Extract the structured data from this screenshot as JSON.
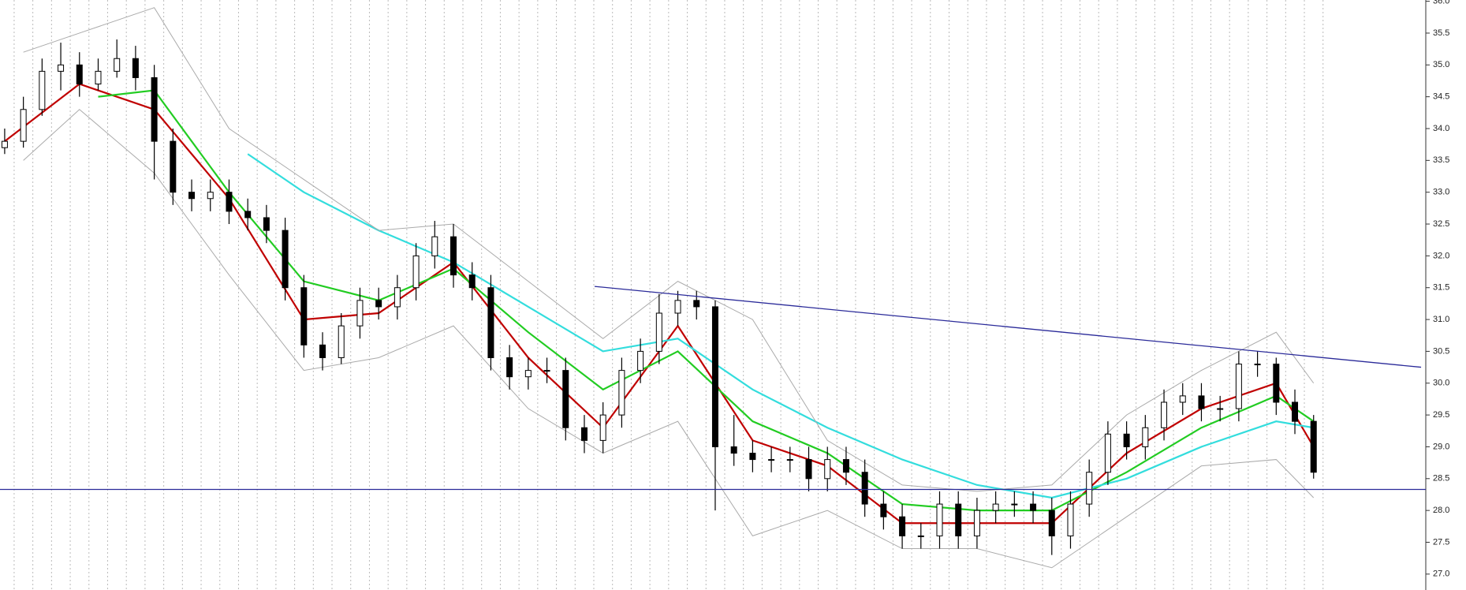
{
  "chart_data": {
    "type": "candlestick",
    "xlim": [
      -0.25,
      76
    ],
    "ylim": [
      26.75,
      36.02
    ],
    "yticks": [
      {
        "value": 27,
        "label": "27.0"
      },
      {
        "value": 27.5,
        "label": "27.5"
      },
      {
        "value": 28,
        "label": "28.0"
      },
      {
        "value": 28.5,
        "label": "28.5"
      },
      {
        "value": 29,
        "label": "29.0"
      },
      {
        "value": 29.5,
        "label": "29.5"
      },
      {
        "value": 30,
        "label": "30.0"
      },
      {
        "value": 30.5,
        "label": "30.5"
      },
      {
        "value": 31,
        "label": "31.0"
      },
      {
        "value": 31.5,
        "label": "31.5"
      },
      {
        "value": 32,
        "label": "32.0"
      },
      {
        "value": 32.5,
        "label": "32.5"
      },
      {
        "value": 33,
        "label": "33.0"
      },
      {
        "value": 33.5,
        "label": "33.5"
      },
      {
        "value": 34,
        "label": "34.0"
      },
      {
        "value": 34.5,
        "label": "34.5"
      },
      {
        "value": 35,
        "label": "35.0"
      },
      {
        "value": 35.5,
        "label": "35.5"
      },
      {
        "value": 36,
        "label": "36.0"
      }
    ],
    "grid": true,
    "candle_color": "#000000",
    "open": [
      33.7,
      33.8,
      34.3,
      34.9,
      35.0,
      34.7,
      34.9,
      35.1,
      34.8,
      33.8,
      33.0,
      32.9,
      33.0,
      32.7,
      32.6,
      32.4,
      31.5,
      30.6,
      30.4,
      30.9,
      31.3,
      31.2,
      31.5,
      32.0,
      32.3,
      31.7,
      31.5,
      30.4,
      30.1,
      30.2,
      30.2,
      29.3,
      29.1,
      29.5,
      30.2,
      30.5,
      31.1,
      31.3,
      31.2,
      29.0,
      28.9,
      28.8,
      28.8,
      28.8,
      28.5,
      28.8,
      28.6,
      28.1,
      27.9,
      27.6,
      27.6,
      28.1,
      27.6,
      28.0,
      28.1,
      28.1,
      28.0,
      27.6,
      28.1,
      28.6,
      29.2,
      29.0,
      29.3,
      29.7,
      29.8,
      29.6,
      29.6,
      30.3,
      30.3,
      29.7,
      29.4
    ],
    "high": [
      34.0,
      34.5,
      35.1,
      35.35,
      35.2,
      35.1,
      35.4,
      35.3,
      35.0,
      34.0,
      33.2,
      33.2,
      33.2,
      32.9,
      32.8,
      32.6,
      31.7,
      30.8,
      31.1,
      31.5,
      31.5,
      31.7,
      32.2,
      32.55,
      32.5,
      31.9,
      31.7,
      30.6,
      30.4,
      30.4,
      30.4,
      29.5,
      29.7,
      30.4,
      30.7,
      31.4,
      31.45,
      31.45,
      31.3,
      29.5,
      29.1,
      29.0,
      29.0,
      29.0,
      29.0,
      29.0,
      28.8,
      28.3,
      28.1,
      27.8,
      28.3,
      28.3,
      28.2,
      28.3,
      28.3,
      28.3,
      28.2,
      28.3,
      28.8,
      29.4,
      29.4,
      29.5,
      29.9,
      30.0,
      30.0,
      29.8,
      30.5,
      30.5,
      30.4,
      29.9,
      29.5
    ],
    "low": [
      33.6,
      33.7,
      34.2,
      34.6,
      34.5,
      34.6,
      34.8,
      34.6,
      33.2,
      32.8,
      32.7,
      32.7,
      32.5,
      32.4,
      32.2,
      31.3,
      30.4,
      30.2,
      30.3,
      30.7,
      31.0,
      31.0,
      31.3,
      31.8,
      31.5,
      31.3,
      30.2,
      29.9,
      29.9,
      30.0,
      29.1,
      28.9,
      28.9,
      29.3,
      30.0,
      30.3,
      30.9,
      31.0,
      28.0,
      28.7,
      28.6,
      28.6,
      28.6,
      28.3,
      28.3,
      28.4,
      27.9,
      27.7,
      27.4,
      27.4,
      27.4,
      27.4,
      27.4,
      27.8,
      27.9,
      27.8,
      27.3,
      27.4,
      27.9,
      28.4,
      28.8,
      28.8,
      29.1,
      29.5,
      29.4,
      29.4,
      29.4,
      30.1,
      29.5,
      29.2,
      28.5
    ],
    "close": [
      33.8,
      34.3,
      34.9,
      35.0,
      34.7,
      34.9,
      35.1,
      34.8,
      33.8,
      33.0,
      32.9,
      33.0,
      32.7,
      32.6,
      32.4,
      31.5,
      30.6,
      30.4,
      30.9,
      31.3,
      31.2,
      31.5,
      32.0,
      32.3,
      31.7,
      31.5,
      30.4,
      30.1,
      30.2,
      30.2,
      29.3,
      29.1,
      29.5,
      30.2,
      30.5,
      31.1,
      31.3,
      31.2,
      29.0,
      28.9,
      28.8,
      28.8,
      28.8,
      28.5,
      28.8,
      28.6,
      28.1,
      27.9,
      27.6,
      27.6,
      28.1,
      27.6,
      28.0,
      28.1,
      28.1,
      28.0,
      27.6,
      28.1,
      28.6,
      29.2,
      29.0,
      29.3,
      29.7,
      29.8,
      29.6,
      29.6,
      30.3,
      30.3,
      29.7,
      29.4,
      28.6
    ],
    "series": [
      {
        "color": "#c00000",
        "x": [
          0,
          4,
          8,
          12,
          16,
          20,
          24,
          28,
          32,
          36,
          40,
          44,
          48,
          52,
          56,
          60,
          64,
          68,
          70
        ],
        "values": [
          33.8,
          34.7,
          34.3,
          32.9,
          31.0,
          31.1,
          31.9,
          30.4,
          29.3,
          30.9,
          29.1,
          28.7,
          27.8,
          27.8,
          27.8,
          28.9,
          29.6,
          30.0,
          29.0
        ]
      },
      {
        "color": "#22cc22",
        "x": [
          5,
          8,
          12,
          16,
          20,
          24,
          28,
          32,
          36,
          40,
          44,
          48,
          52,
          56,
          60,
          64,
          68,
          70
        ],
        "values": [
          34.5,
          34.6,
          33.0,
          31.6,
          31.3,
          31.8,
          30.8,
          29.9,
          30.5,
          29.4,
          28.9,
          28.1,
          28.0,
          28.0,
          28.6,
          29.3,
          29.8,
          29.4
        ]
      },
      {
        "color": "#33dddd",
        "x": [
          13,
          16,
          20,
          24,
          28,
          32,
          36,
          40,
          44,
          48,
          52,
          56,
          60,
          64,
          68,
          70
        ],
        "values": [
          33.6,
          33.0,
          32.4,
          31.9,
          31.2,
          30.5,
          30.7,
          29.9,
          29.3,
          28.8,
          28.4,
          28.2,
          28.5,
          29.0,
          29.4,
          29.3
        ]
      },
      {
        "color": "#aaaaaa",
        "x": [
          1,
          4,
          8,
          12,
          16,
          20,
          24,
          28,
          32,
          36,
          40,
          44,
          48,
          52,
          56,
          60,
          64,
          68,
          70
        ],
        "values": [
          35.2,
          35.5,
          35.9,
          34.0,
          33.2,
          32.4,
          32.5,
          31.6,
          30.7,
          31.6,
          31.0,
          29.1,
          28.4,
          28.3,
          28.4,
          29.5,
          30.2,
          30.8,
          30.0
        ]
      },
      {
        "color": "#aaaaaa",
        "x": [
          1,
          4,
          8,
          12,
          16,
          20,
          24,
          28,
          32,
          36,
          40,
          44,
          48,
          52,
          56,
          60,
          64,
          68,
          70
        ],
        "values": [
          33.5,
          34.3,
          33.3,
          31.7,
          30.2,
          30.4,
          30.9,
          29.6,
          28.9,
          29.4,
          27.6,
          28.0,
          27.4,
          27.4,
          27.1,
          27.9,
          28.7,
          28.8,
          28.2
        ]
      }
    ],
    "trendlines": [
      {
        "color": "#2a2a99",
        "x": [
          31.55,
          75.75
        ],
        "values": [
          31.52,
          30.25
        ]
      },
      {
        "color": "#2a2a99",
        "x": [
          -0.25,
          76
        ],
        "values": [
          28.33,
          28.33
        ]
      }
    ]
  }
}
